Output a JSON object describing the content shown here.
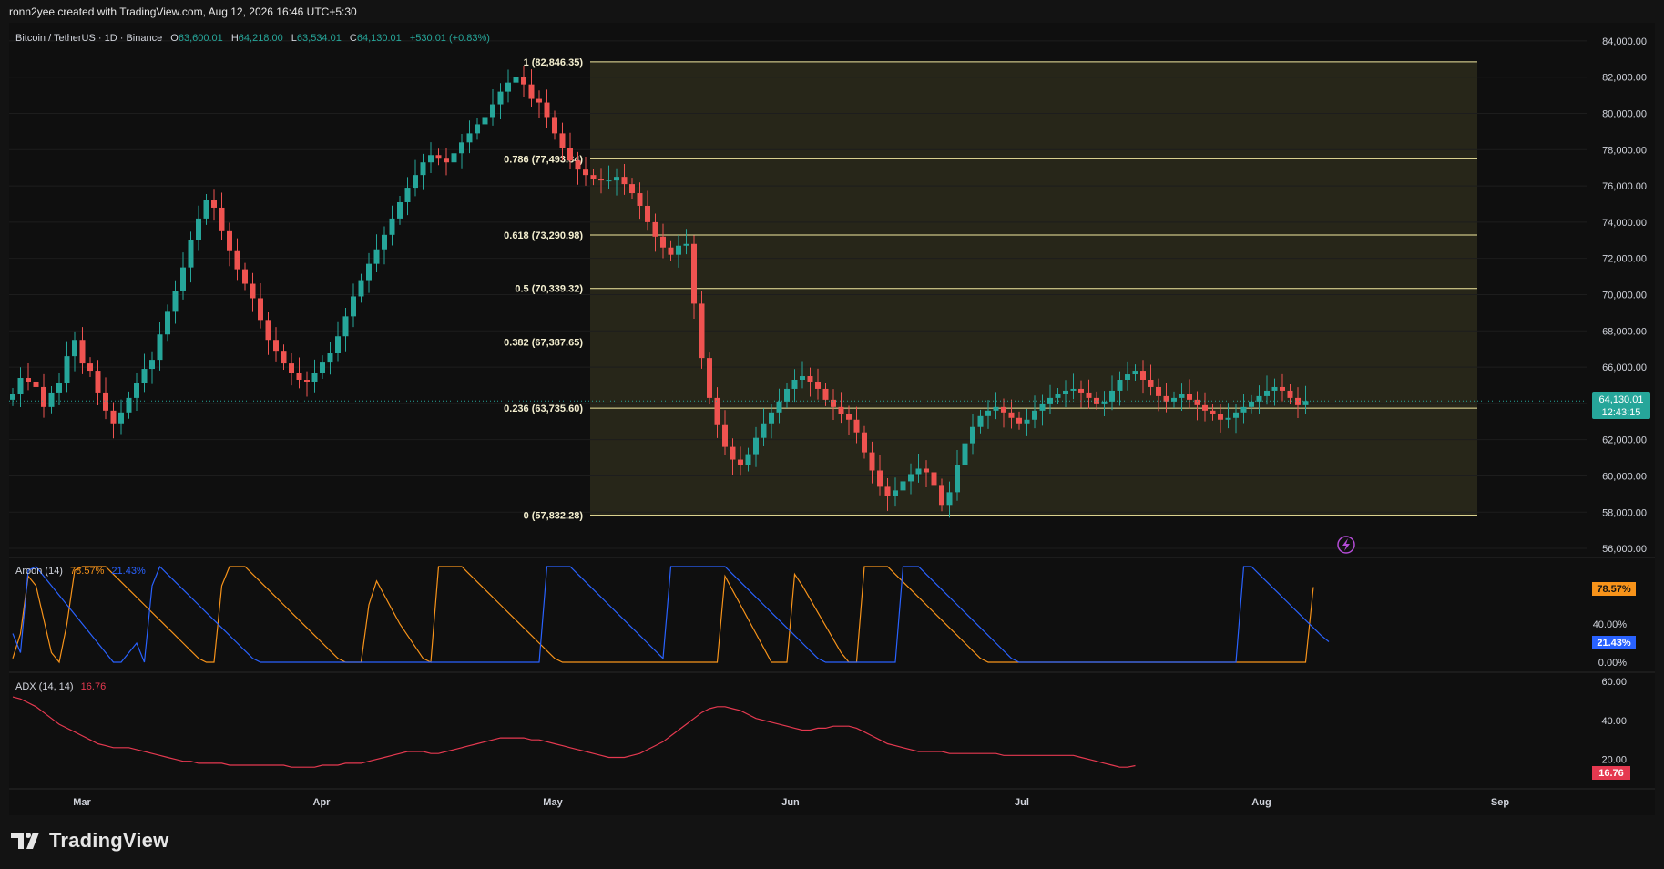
{
  "header": {
    "caption": "ronn2yee created with TradingView.com, Aug 12, 2026 16:46 UTC+5:30",
    "symbol": "Bitcoin / TetherUS · 1D · Binance",
    "o_label": "O",
    "o_value": "63,600.01",
    "h_label": "H",
    "h_value": "64,218.00",
    "l_label": "L",
    "l_value": "63,534.01",
    "c_label": "C",
    "c_value": "64,130.01",
    "change": "+530.01 (+0.83%)"
  },
  "colors": {
    "up": "#26a69a",
    "down": "#ef5350",
    "fib": "#f3e9a0",
    "fib_fill": "#2b2a1b",
    "aroon_up": "#f7931a",
    "aroon_down": "#2962ff",
    "adx": "#e53950",
    "bg": "#131313"
  },
  "brand": {
    "name": "TradingView"
  },
  "chart_data": [
    {
      "type": "candlestick",
      "x_labels": [
        "Mar",
        "Apr",
        "May",
        "Jun",
        "Jul",
        "Aug",
        "Sep"
      ],
      "y_ticks": [
        "84,000.00",
        "82,000.00",
        "80,000.00",
        "78,000.00",
        "76,000.00",
        "74,000.00",
        "72,000.00",
        "70,000.00",
        "68,000.00",
        "66,000.00",
        "64,000.00",
        "62,000.00",
        "60,000.00",
        "58,000.00",
        "56,000.00"
      ],
      "ylim": [
        55500,
        85000
      ],
      "last_price_label": "64,130.01",
      "countdown": "12:43:15",
      "fib_levels": [
        {
          "level": 1,
          "price": 82846.35,
          "label": "1 (82,846.35)"
        },
        {
          "level": 0.786,
          "price": 77493.34,
          "label": "0.786 (77,493.34)"
        },
        {
          "level": 0.618,
          "price": 73290.98,
          "label": "0.618 (73,290.98)"
        },
        {
          "level": 0.5,
          "price": 70339.32,
          "label": "0.5 (70,339.32)"
        },
        {
          "level": 0.382,
          "price": 67387.65,
          "label": "0.382 (67,387.65)"
        },
        {
          "level": 0.236,
          "price": 63735.6,
          "label": "0.236 (63,735.60)"
        },
        {
          "level": 0,
          "price": 57832.28,
          "label": "0 (57,832.28)"
        }
      ],
      "closes": [
        64500,
        65400,
        65200,
        64900,
        63800,
        64600,
        65100,
        66600,
        67500,
        66200,
        65800,
        64600,
        63600,
        62900,
        63500,
        64300,
        65100,
        65900,
        66400,
        67800,
        69100,
        70200,
        71500,
        73000,
        74200,
        75200,
        74800,
        73500,
        72400,
        71400,
        70600,
        69800,
        68600,
        67500,
        66900,
        66200,
        65700,
        65300,
        65200,
        65700,
        66300,
        66800,
        67700,
        68800,
        69900,
        70800,
        71700,
        72500,
        73300,
        74200,
        75100,
        75900,
        76600,
        77300,
        77700,
        77500,
        77300,
        77800,
        78400,
        78900,
        79400,
        79800,
        80500,
        81200,
        81700,
        82000,
        81600,
        80800,
        80600,
        79800,
        78900,
        78100,
        77400,
        76900,
        76600,
        76400,
        76300,
        76300,
        76500,
        76100,
        75600,
        74900,
        74000,
        73200,
        72600,
        72200,
        72700,
        72800,
        69500,
        66500,
        64300,
        62800,
        61600,
        60900,
        60600,
        61200,
        62100,
        62900,
        63500,
        64100,
        64800,
        65300,
        65500,
        65200,
        64800,
        64200,
        63800,
        63400,
        63100,
        62400,
        61300,
        60300,
        59400,
        58900,
        59200,
        59700,
        60100,
        60400,
        60200,
        59500,
        58400,
        59100,
        60600,
        61800,
        62700,
        63300,
        63600,
        63800,
        63500,
        63200,
        62900,
        63100,
        63600,
        64000,
        64300,
        64500,
        64700,
        64800,
        64600,
        64300,
        64000,
        64100,
        64700,
        65300,
        65600,
        65800,
        65300,
        64900,
        64400,
        64100,
        64300,
        64500,
        64200,
        63900,
        63600,
        63400,
        63100,
        63200,
        63500,
        63800,
        64100,
        64400,
        64700,
        64900,
        64700,
        64300,
        63900,
        64130
      ],
      "aroon_label": "Aroon (14)",
      "aroon_up_value": "78.57%",
      "aroon_down_value": "21.43%",
      "aroon_y_ticks": [
        "40.00%",
        "0.00%"
      ],
      "aroon_ylim": [
        0,
        100
      ],
      "aroon_up": [
        4,
        30,
        90,
        80,
        45,
        10,
        0,
        40,
        96,
        100,
        100,
        100,
        100,
        92,
        84,
        76,
        68,
        60,
        52,
        44,
        36,
        28,
        20,
        12,
        4,
        0,
        0,
        80,
        100,
        100,
        100,
        92,
        84,
        76,
        68,
        60,
        52,
        44,
        36,
        28,
        20,
        12,
        4,
        0,
        0,
        0,
        60,
        85,
        70,
        55,
        40,
        28,
        16,
        4,
        0,
        100,
        100,
        100,
        100,
        92,
        84,
        76,
        68,
        60,
        52,
        44,
        36,
        28,
        20,
        12,
        4,
        0,
        0,
        0,
        0,
        0,
        0,
        0,
        0,
        0,
        0,
        0,
        0,
        0,
        0,
        0,
        0,
        0,
        0,
        0,
        0,
        0,
        90,
        75,
        60,
        45,
        30,
        15,
        0,
        0,
        0,
        92,
        80,
        66,
        52,
        38,
        24,
        10,
        0,
        0,
        100,
        100,
        100,
        100,
        92,
        84,
        76,
        68,
        60,
        52,
        44,
        36,
        28,
        20,
        12,
        4,
        0,
        0,
        0,
        0,
        0,
        0,
        0,
        0,
        0,
        0,
        0,
        0,
        0,
        0,
        0,
        0,
        0,
        0,
        0,
        0,
        0,
        0,
        0,
        0,
        0,
        0,
        0,
        0,
        0,
        0,
        0,
        0,
        0,
        0,
        0,
        0,
        0,
        0,
        0,
        0,
        0,
        0,
        78.57
      ],
      "aroon_down": [
        30,
        10,
        96,
        100,
        90,
        80,
        70,
        60,
        50,
        40,
        30,
        20,
        10,
        0,
        0,
        10,
        20,
        0,
        80,
        100,
        92,
        84,
        76,
        68,
        60,
        52,
        44,
        36,
        28,
        20,
        12,
        4,
        0,
        0,
        0,
        0,
        0,
        0,
        0,
        0,
        0,
        0,
        0,
        0,
        0,
        0,
        0,
        0,
        0,
        0,
        0,
        0,
        0,
        0,
        0,
        0,
        0,
        0,
        0,
        0,
        0,
        0,
        0,
        0,
        0,
        0,
        0,
        0,
        0,
        100,
        100,
        100,
        100,
        92,
        84,
        76,
        68,
        60,
        52,
        44,
        36,
        28,
        20,
        12,
        4,
        100,
        100,
        100,
        100,
        100,
        100,
        100,
        100,
        92,
        84,
        76,
        68,
        60,
        52,
        44,
        36,
        28,
        20,
        12,
        4,
        0,
        0,
        0,
        0,
        0,
        0,
        0,
        0,
        0,
        0,
        100,
        100,
        100,
        92,
        84,
        76,
        68,
        60,
        52,
        44,
        36,
        28,
        20,
        12,
        4,
        0,
        0,
        0,
        0,
        0,
        0,
        0,
        0,
        0,
        0,
        0,
        0,
        0,
        0,
        0,
        0,
        0,
        0,
        0,
        0,
        0,
        0,
        0,
        0,
        0,
        0,
        0,
        0,
        0,
        100,
        100,
        92,
        84,
        76,
        68,
        60,
        52,
        44,
        36,
        28,
        21.43
      ],
      "adx_label": "ADX (14, 14)",
      "adx_value": "16.76",
      "adx_y_ticks": [
        "60.00",
        "40.00",
        "20.00"
      ],
      "adx_ylim": [
        10,
        60
      ],
      "adx": [
        52,
        51,
        49,
        47,
        44,
        41,
        38,
        36,
        34,
        32,
        30,
        28,
        27,
        26,
        26,
        26,
        25,
        24,
        23,
        22,
        21,
        20,
        19,
        19,
        18,
        18,
        18,
        18,
        17,
        17,
        17,
        17,
        17,
        17,
        17,
        17,
        16,
        16,
        16,
        16,
        17,
        17,
        17,
        18,
        18,
        18,
        19,
        20,
        21,
        22,
        23,
        24,
        24,
        24,
        23,
        23,
        24,
        25,
        26,
        27,
        28,
        29,
        30,
        31,
        31,
        31,
        31,
        30,
        30,
        29,
        28,
        27,
        26,
        25,
        24,
        23,
        22,
        21,
        21,
        21,
        22,
        23,
        25,
        27,
        29,
        32,
        35,
        38,
        41,
        44,
        46,
        47,
        47,
        46,
        45,
        43,
        41,
        40,
        39,
        38,
        37,
        36,
        35,
        35,
        36,
        36,
        37,
        37,
        37,
        36,
        34,
        32,
        30,
        28,
        27,
        26,
        25,
        24,
        24,
        24,
        24,
        23,
        23,
        23,
        23,
        23,
        23,
        23,
        22,
        22,
        22,
        22,
        22,
        22,
        22,
        22,
        22,
        22,
        21,
        20,
        19,
        18,
        17,
        16,
        16,
        16.76
      ]
    }
  ]
}
